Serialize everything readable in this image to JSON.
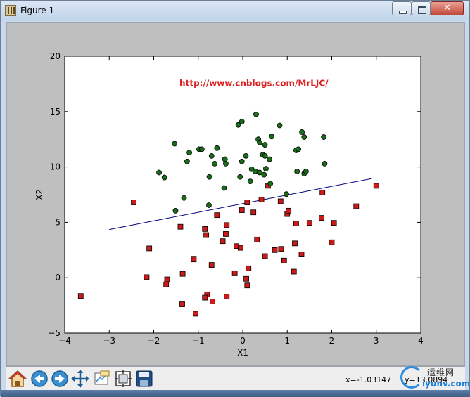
{
  "window": {
    "title": "Figure 1"
  },
  "toolbar": {
    "items": [
      "home-icon",
      "back-arrow-icon",
      "forward-arrow-icon",
      "pan-icon",
      "zoom-icon",
      "subplot-config-icon",
      "save-icon"
    ],
    "x_readout": "x=-1.03147",
    "y_readout": "y=13.0894"
  },
  "watermark": {
    "cn_text": "运维网",
    "en_text": "iyunv.com"
  },
  "colors": {
    "class1_face": "#1a6b1a",
    "class0_face": "#cc1a1a",
    "line": "#00007a",
    "annotation": "#dd2222",
    "figure_bg": "#bfbfbf"
  },
  "chart_data": {
    "type": "scatter",
    "title": "",
    "xlabel": "X1",
    "ylabel": "X2",
    "xlim": [
      -4,
      4
    ],
    "ylim": [
      -5,
      20
    ],
    "xticks": [
      -4,
      -3,
      -2,
      -1,
      0,
      1,
      2,
      3,
      4
    ],
    "yticks": [
      -5,
      0,
      5,
      10,
      15,
      20
    ],
    "annotation": "http://www.cnblogs.com/MrLJC/",
    "grid": false,
    "series": [
      {
        "marker": "circle",
        "points": [
          [
            -1.53,
            12.1
          ],
          [
            -1.2,
            11.3
          ],
          [
            -0.98,
            11.6
          ],
          [
            -0.92,
            11.6
          ],
          [
            -0.7,
            11.0
          ],
          [
            -0.58,
            11.7
          ],
          [
            -1.88,
            9.5
          ],
          [
            -1.76,
            9.05
          ],
          [
            -1.25,
            10.5
          ],
          [
            -0.75,
            9.1
          ],
          [
            -0.63,
            10.3
          ],
          [
            -0.4,
            10.7
          ],
          [
            -0.38,
            10.3
          ],
          [
            -0.42,
            8.1
          ],
          [
            -0.06,
            9.1
          ],
          [
            -0.02,
            10.5
          ],
          [
            0.07,
            11.0
          ],
          [
            0.17,
            8.7
          ],
          [
            0.2,
            9.8
          ],
          [
            0.28,
            9.6
          ],
          [
            0.38,
            9.5
          ],
          [
            0.48,
            9.3
          ],
          [
            0.52,
            9.85
          ],
          [
            0.6,
            10.7
          ],
          [
            0.62,
            8.5
          ],
          [
            -0.1,
            13.8
          ],
          [
            -0.02,
            14.1
          ],
          [
            0.3,
            14.75
          ],
          [
            0.35,
            12.5
          ],
          [
            0.38,
            12.2
          ],
          [
            0.45,
            11.1
          ],
          [
            0.5,
            11.0
          ],
          [
            0.5,
            12.0
          ],
          [
            0.65,
            12.75
          ],
          [
            0.83,
            13.75
          ],
          [
            1.2,
            11.5
          ],
          [
            1.25,
            11.6
          ],
          [
            1.33,
            13.15
          ],
          [
            1.38,
            12.7
          ],
          [
            1.22,
            9.6
          ],
          [
            1.38,
            9.4
          ],
          [
            1.42,
            9.6
          ],
          [
            1.82,
            12.7
          ],
          [
            1.84,
            10.3
          ],
          [
            -1.51,
            6.05
          ],
          [
            -1.32,
            7.2
          ],
          [
            -0.76,
            6.55
          ],
          [
            0.98,
            7.55
          ]
        ]
      },
      {
        "marker": "square",
        "points": [
          [
            -3.64,
            -1.65
          ],
          [
            -2.45,
            6.8
          ],
          [
            -2.1,
            2.65
          ],
          [
            -2.16,
            0.05
          ],
          [
            -1.7,
            -0.15
          ],
          [
            -1.72,
            -0.6
          ],
          [
            -1.4,
            4.6
          ],
          [
            -1.35,
            0.35
          ],
          [
            -1.36,
            -2.4
          ],
          [
            -1.1,
            1.65
          ],
          [
            -1.06,
            -3.25
          ],
          [
            -0.85,
            4.4
          ],
          [
            -0.82,
            3.85
          ],
          [
            -0.8,
            -1.5
          ],
          [
            -0.85,
            -1.8
          ],
          [
            -0.7,
            1.15
          ],
          [
            -0.68,
            -2.15
          ],
          [
            -0.58,
            5.65
          ],
          [
            -0.45,
            3.3
          ],
          [
            -0.38,
            3.95
          ],
          [
            -0.36,
            4.75
          ],
          [
            -0.36,
            -1.7
          ],
          [
            -0.18,
            0.4
          ],
          [
            -0.14,
            2.85
          ],
          [
            -0.02,
            6.1
          ],
          [
            -0.05,
            2.7
          ],
          [
            0.08,
            -0.1
          ],
          [
            0.1,
            -0.7
          ],
          [
            0.1,
            6.8
          ],
          [
            0.13,
            0.85
          ],
          [
            0.24,
            5.9
          ],
          [
            0.32,
            3.45
          ],
          [
            0.42,
            7.05
          ],
          [
            0.5,
            1.95
          ],
          [
            0.57,
            8.3
          ],
          [
            0.72,
            2.5
          ],
          [
            0.86,
            2.6
          ],
          [
            0.85,
            6.9
          ],
          [
            0.93,
            1.55
          ],
          [
            1.0,
            5.75
          ],
          [
            1.03,
            6.05
          ],
          [
            1.15,
            0.55
          ],
          [
            1.17,
            3.1
          ],
          [
            1.2,
            4.9
          ],
          [
            1.32,
            2.1
          ],
          [
            1.5,
            4.95
          ],
          [
            1.77,
            5.4
          ],
          [
            1.79,
            7.7
          ],
          [
            2.0,
            3.2
          ],
          [
            2.05,
            4.95
          ],
          [
            2.55,
            6.45
          ],
          [
            3.0,
            8.3
          ]
        ]
      }
    ],
    "line": {
      "x": [
        -3.0,
        2.9
      ],
      "y": [
        4.35,
        8.95
      ]
    }
  }
}
